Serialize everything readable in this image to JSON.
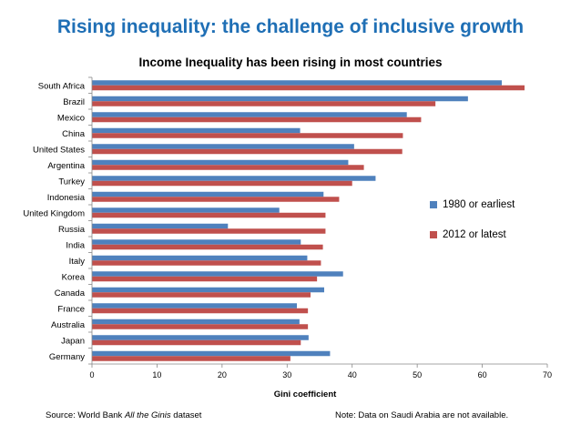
{
  "slide": {
    "title": "Rising inequality: the challenge of inclusive growth"
  },
  "footer": {
    "source_prefix": "Source: World Bank ",
    "source_italic": "All the Ginis",
    "source_suffix": " dataset",
    "note": "Note: Data on Saudi Arabia are not available."
  },
  "colors": {
    "series_1980": "#4f81bd",
    "series_2012": "#c0504d",
    "title": "#1f6fb5"
  },
  "chart_data": {
    "type": "bar",
    "orientation": "horizontal",
    "title": "Income Inequality has been rising in most countries",
    "xlabel": "Gini coefficient",
    "ylabel": "",
    "xlim": [
      0,
      70
    ],
    "xticks": [
      0,
      10,
      20,
      30,
      40,
      50,
      60,
      70
    ],
    "grid": false,
    "legend_position": "right",
    "categories": [
      "South Africa",
      "Brazil",
      "Mexico",
      "China",
      "United States",
      "Argentina",
      "Turkey",
      "Indonesia",
      "United Kingdom",
      "Russia",
      "India",
      "Italy",
      "Korea",
      "Canada",
      "France",
      "Australia",
      "Japan",
      "Germany"
    ],
    "series": [
      {
        "name": "1980 or earliest",
        "color": "#4f81bd",
        "values": [
          63.0,
          57.8,
          48.4,
          32.0,
          40.3,
          39.4,
          43.6,
          35.6,
          28.8,
          20.9,
          32.1,
          33.1,
          38.6,
          35.7,
          31.5,
          31.9,
          33.3,
          36.6
        ]
      },
      {
        "name": "2012 or latest",
        "color": "#c0504d",
        "values": [
          66.5,
          52.8,
          50.6,
          47.8,
          47.7,
          41.8,
          40.0,
          38.0,
          35.9,
          35.9,
          35.5,
          35.2,
          34.6,
          33.6,
          33.2,
          33.2,
          32.1,
          30.5
        ]
      }
    ]
  }
}
